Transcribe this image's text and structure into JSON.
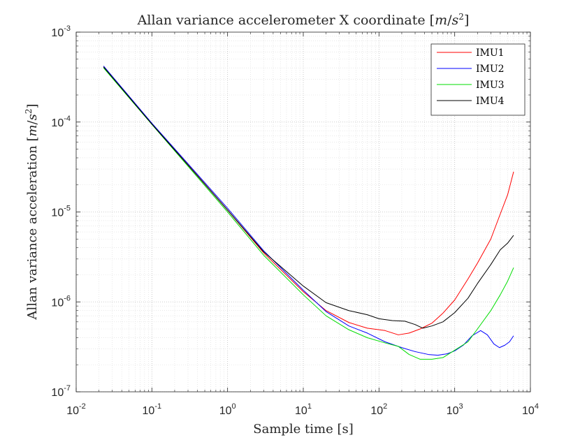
{
  "chart_data": {
    "type": "line",
    "title": "Allan variance accelerometer X coordinate [m/s²]",
    "xlabel": "Sample time [s]",
    "ylabel": "Allan variance acceleration [m/s²]",
    "x_scale": "log",
    "y_scale": "log",
    "xlim": [
      0.01,
      10000
    ],
    "ylim": [
      1e-07,
      0.001
    ],
    "x_ticks": [
      {
        "base": "10",
        "exp": "-2",
        "value": 0.01
      },
      {
        "base": "10",
        "exp": "-1",
        "value": 0.1
      },
      {
        "base": "10",
        "exp": "0",
        "value": 1
      },
      {
        "base": "10",
        "exp": "1",
        "value": 10
      },
      {
        "base": "10",
        "exp": "2",
        "value": 100
      },
      {
        "base": "10",
        "exp": "3",
        "value": 1000
      },
      {
        "base": "10",
        "exp": "4",
        "value": 10000
      }
    ],
    "y_ticks": [
      {
        "base": "10",
        "exp": "-7",
        "value": 1e-07
      },
      {
        "base": "10",
        "exp": "-6",
        "value": 1e-06
      },
      {
        "base": "10",
        "exp": "-5",
        "value": 1e-05
      },
      {
        "base": "10",
        "exp": "-4",
        "value": 0.0001
      },
      {
        "base": "10",
        "exp": "-3",
        "value": 0.001
      }
    ],
    "grid": true,
    "minor_grid": true,
    "legend_position": "top-right",
    "series": [
      {
        "name": "IMU1",
        "color": "#ff0000",
        "points": [
          [
            0.023,
            0.00041
          ],
          [
            0.1,
            9.6e-05
          ],
          [
            1,
            1.05e-05
          ],
          [
            3,
            3.5e-06
          ],
          [
            10,
            1.3e-06
          ],
          [
            20,
            8e-07
          ],
          [
            40,
            5.9e-07
          ],
          [
            70,
            5.1e-07
          ],
          [
            120,
            4.8e-07
          ],
          [
            180,
            4.3e-07
          ],
          [
            250,
            4.5e-07
          ],
          [
            350,
            5e-07
          ],
          [
            500,
            5.8e-07
          ],
          [
            700,
            7.5e-07
          ],
          [
            1000,
            1.05e-06
          ],
          [
            1500,
            1.8e-06
          ],
          [
            2000,
            2.7e-06
          ],
          [
            3000,
            5e-06
          ],
          [
            4000,
            9.5e-06
          ],
          [
            5000,
            1.55e-05
          ],
          [
            6000,
            2.8e-05
          ]
        ]
      },
      {
        "name": "IMU2",
        "color": "#0000ff",
        "points": [
          [
            0.023,
            0.00042
          ],
          [
            0.1,
            9.7e-05
          ],
          [
            1,
            1.1e-05
          ],
          [
            3,
            3.7e-06
          ],
          [
            10,
            1.35e-06
          ],
          [
            20,
            7.8e-07
          ],
          [
            40,
            5.4e-07
          ],
          [
            70,
            4.5e-07
          ],
          [
            120,
            3.6e-07
          ],
          [
            200,
            3.1e-07
          ],
          [
            300,
            2.8e-07
          ],
          [
            450,
            2.6e-07
          ],
          [
            600,
            2.55e-07
          ],
          [
            800,
            2.65e-07
          ],
          [
            1000,
            2.85e-07
          ],
          [
            1300,
            3.3e-07
          ],
          [
            1700,
            4.2e-07
          ],
          [
            2200,
            4.8e-07
          ],
          [
            2700,
            4.3e-07
          ],
          [
            3300,
            3.4e-07
          ],
          [
            3900,
            3.1e-07
          ],
          [
            4600,
            3.3e-07
          ],
          [
            5300,
            3.6e-07
          ],
          [
            6000,
            4.2e-07
          ]
        ]
      },
      {
        "name": "IMU3",
        "color": "#00dd00",
        "points": [
          [
            0.023,
            0.0004
          ],
          [
            0.1,
            9.4e-05
          ],
          [
            1,
            1e-05
          ],
          [
            3,
            3.3e-06
          ],
          [
            10,
            1.2e-06
          ],
          [
            20,
            7e-07
          ],
          [
            40,
            4.9e-07
          ],
          [
            70,
            4e-07
          ],
          [
            120,
            3.5e-07
          ],
          [
            180,
            3.2e-07
          ],
          [
            250,
            2.6e-07
          ],
          [
            350,
            2.3e-07
          ],
          [
            500,
            2.3e-07
          ],
          [
            700,
            2.4e-07
          ],
          [
            1000,
            2.9e-07
          ],
          [
            1500,
            3.6e-07
          ],
          [
            2000,
            5e-07
          ],
          [
            3000,
            8e-07
          ],
          [
            4000,
            1.2e-06
          ],
          [
            5000,
            1.7e-06
          ],
          [
            6000,
            2.4e-06
          ]
        ]
      },
      {
        "name": "IMU4",
        "color": "#000000",
        "points": [
          [
            0.023,
            0.00041
          ],
          [
            0.1,
            9.5e-05
          ],
          [
            1,
            1.05e-05
          ],
          [
            3,
            3.6e-06
          ],
          [
            10,
            1.5e-06
          ],
          [
            20,
            9.8e-07
          ],
          [
            40,
            8e-07
          ],
          [
            70,
            7.2e-07
          ],
          [
            100,
            6.5e-07
          ],
          [
            150,
            6.2e-07
          ],
          [
            220,
            6.1e-07
          ],
          [
            300,
            5.6e-07
          ],
          [
            380,
            5.1e-07
          ],
          [
            500,
            5.4e-07
          ],
          [
            700,
            6e-07
          ],
          [
            1000,
            7.6e-07
          ],
          [
            1500,
            1.1e-06
          ],
          [
            2000,
            1.6e-06
          ],
          [
            3000,
            2.6e-06
          ],
          [
            4000,
            3.8e-06
          ],
          [
            5000,
            4.5e-06
          ],
          [
            6000,
            5.5e-06
          ]
        ]
      }
    ]
  }
}
